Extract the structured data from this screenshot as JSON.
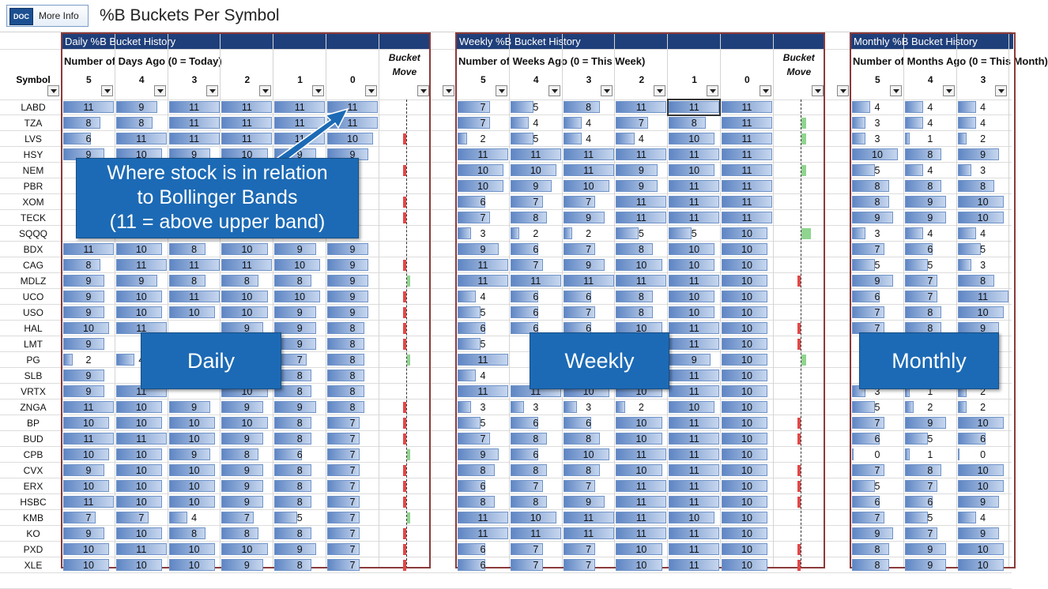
{
  "toolbar": {
    "doc_icon": "DOC",
    "more_info_label": "More Info",
    "title": "%B Buckets Per Symbol"
  },
  "symbol_header": "Symbol",
  "sections": [
    {
      "id": "daily",
      "title": "Daily %B Bucket History",
      "subheader": "Number of Days Ago (0 = Today)"
    },
    {
      "id": "weekly",
      "title": "Weekly %B Bucket History",
      "subheader": "Number of Weeks Ago (0 = This Week)"
    },
    {
      "id": "monthly",
      "title": "Monthly %B Bucket History",
      "subheader": "Number of Months Ago (0 = This Month)"
    }
  ],
  "column_numbers": [
    "5",
    "4",
    "3",
    "2",
    "1",
    "0"
  ],
  "bucket_move_label": "Bucket Move",
  "symbols": [
    "LABD",
    "TZA",
    "LVS",
    "HSY",
    "NEM",
    "PBR",
    "XOM",
    "TECK",
    "SQQQ",
    "BDX",
    "CAG",
    "MDLZ",
    "UCO",
    "USO",
    "HAL",
    "LMT",
    "PG",
    "SLB",
    "VRTX",
    "ZNGA",
    "BP",
    "BUD",
    "CPB",
    "CVX",
    "ERX",
    "HSBC",
    "KMB",
    "KO",
    "PXD",
    "XLE"
  ],
  "daily": [
    [
      11,
      9,
      11,
      11,
      11,
      11
    ],
    [
      8,
      8,
      11,
      11,
      11,
      11
    ],
    [
      6,
      11,
      11,
      11,
      11,
      10
    ],
    [
      9,
      10,
      9,
      10,
      9,
      9
    ],
    [
      null,
      null,
      null,
      null,
      null,
      null
    ],
    [
      null,
      null,
      null,
      null,
      null,
      null
    ],
    [
      null,
      null,
      null,
      null,
      null,
      null
    ],
    [
      null,
      null,
      null,
      null,
      null,
      null
    ],
    [
      null,
      null,
      null,
      null,
      null,
      null
    ],
    [
      11,
      10,
      8,
      10,
      9,
      9
    ],
    [
      8,
      11,
      11,
      11,
      10,
      9
    ],
    [
      9,
      9,
      8,
      8,
      8,
      9
    ],
    [
      9,
      10,
      11,
      10,
      10,
      9
    ],
    [
      9,
      10,
      10,
      10,
      9,
      9
    ],
    [
      10,
      11,
      null,
      9,
      9,
      8
    ],
    [
      9,
      null,
      null,
      null,
      9,
      8
    ],
    [
      2,
      4,
      null,
      null,
      7,
      8
    ],
    [
      9,
      null,
      null,
      null,
      8,
      8
    ],
    [
      9,
      11,
      null,
      10,
      8,
      8
    ],
    [
      11,
      10,
      9,
      9,
      9,
      8
    ],
    [
      10,
      10,
      10,
      10,
      8,
      7
    ],
    [
      11,
      11,
      10,
      9,
      8,
      7
    ],
    [
      10,
      10,
      9,
      8,
      6,
      7
    ],
    [
      9,
      10,
      10,
      9,
      8,
      7
    ],
    [
      10,
      10,
      10,
      9,
      8,
      7
    ],
    [
      11,
      10,
      10,
      9,
      8,
      7
    ],
    [
      7,
      7,
      4,
      7,
      5,
      7
    ],
    [
      9,
      10,
      8,
      8,
      8,
      7
    ],
    [
      10,
      11,
      10,
      10,
      9,
      7
    ],
    [
      10,
      10,
      10,
      9,
      8,
      7
    ]
  ],
  "weekly": [
    [
      7,
      5,
      8,
      11,
      11,
      11
    ],
    [
      7,
      4,
      4,
      7,
      8,
      11
    ],
    [
      2,
      5,
      4,
      4,
      10,
      11
    ],
    [
      11,
      11,
      11,
      11,
      11,
      11
    ],
    [
      10,
      10,
      11,
      9,
      10,
      11
    ],
    [
      10,
      9,
      10,
      9,
      11,
      11
    ],
    [
      6,
      7,
      7,
      11,
      11,
      11
    ],
    [
      7,
      8,
      9,
      11,
      11,
      11
    ],
    [
      3,
      2,
      2,
      5,
      5,
      10
    ],
    [
      9,
      6,
      7,
      8,
      10,
      10
    ],
    [
      11,
      7,
      9,
      10,
      10,
      10
    ],
    [
      11,
      11,
      11,
      11,
      11,
      10
    ],
    [
      4,
      6,
      6,
      8,
      10,
      10
    ],
    [
      5,
      6,
      7,
      8,
      10,
      10
    ],
    [
      6,
      6,
      6,
      10,
      11,
      10
    ],
    [
      5,
      null,
      null,
      null,
      11,
      10
    ],
    [
      11,
      null,
      null,
      null,
      9,
      10
    ],
    [
      4,
      null,
      null,
      null,
      11,
      10
    ],
    [
      11,
      11,
      10,
      10,
      11,
      10
    ],
    [
      3,
      3,
      3,
      2,
      10,
      10
    ],
    [
      5,
      6,
      6,
      10,
      11,
      10
    ],
    [
      7,
      8,
      8,
      10,
      11,
      10
    ],
    [
      9,
      6,
      10,
      11,
      11,
      10
    ],
    [
      8,
      8,
      8,
      10,
      11,
      10
    ],
    [
      6,
      7,
      7,
      11,
      11,
      10
    ],
    [
      8,
      8,
      9,
      11,
      11,
      10
    ],
    [
      11,
      10,
      11,
      11,
      10,
      10
    ],
    [
      11,
      11,
      11,
      11,
      11,
      10
    ],
    [
      6,
      7,
      7,
      10,
      11,
      10
    ],
    [
      6,
      7,
      7,
      10,
      11,
      10
    ]
  ],
  "monthly": [
    [
      4,
      4,
      4
    ],
    [
      3,
      4,
      4
    ],
    [
      3,
      1,
      2
    ],
    [
      10,
      8,
      9
    ],
    [
      5,
      4,
      3
    ],
    [
      8,
      8,
      8
    ],
    [
      8,
      9,
      10
    ],
    [
      9,
      9,
      10
    ],
    [
      3,
      4,
      4
    ],
    [
      7,
      6,
      5
    ],
    [
      5,
      5,
      3
    ],
    [
      9,
      7,
      8
    ],
    [
      6,
      7,
      11
    ],
    [
      7,
      8,
      10
    ],
    [
      7,
      8,
      9
    ],
    [
      null,
      null,
      null
    ],
    [
      null,
      null,
      null
    ],
    [
      null,
      null,
      null
    ],
    [
      3,
      1,
      2
    ],
    [
      5,
      2,
      2
    ],
    [
      7,
      9,
      10
    ],
    [
      6,
      5,
      6
    ],
    [
      0,
      1,
      0
    ],
    [
      7,
      8,
      10
    ],
    [
      5,
      7,
      10
    ],
    [
      6,
      6,
      9
    ],
    [
      7,
      5,
      4
    ],
    [
      9,
      7,
      9
    ],
    [
      8,
      9,
      10
    ],
    [
      8,
      9,
      10
    ]
  ],
  "daily_moves": [
    "",
    "",
    "r",
    "",
    "r",
    "",
    "r",
    "r",
    "",
    "",
    "r",
    "g",
    "r",
    "r",
    "r",
    "r",
    "g",
    "",
    "",
    "r",
    "r",
    "r",
    "g",
    "r",
    "r",
    "r",
    "g",
    "r",
    "r",
    "r"
  ],
  "weekly_moves": [
    "",
    "g",
    "g",
    "",
    "g",
    "",
    "",
    "",
    "g",
    "",
    "",
    "r",
    "",
    "",
    "r",
    "r",
    "g",
    "",
    "",
    "",
    "r",
    "r",
    "",
    "r",
    "r",
    "r",
    "",
    "",
    "r",
    "r"
  ],
  "callouts": {
    "bollinger": [
      "Where stock is in relation",
      "to Bollinger Bands",
      "(11 = above upper band)"
    ],
    "daily": "Daily",
    "weekly": "Weekly",
    "monthly": "Monthly"
  },
  "colors": {
    "header_bg": "#1f3f7a",
    "section_border": "#8b3a3a",
    "callout_bg": "#1c6ab5",
    "bar_dark": "#5f86c4",
    "bar_light": "#c6d6ee",
    "move_red": "#e04848",
    "move_green": "#8fd48f"
  }
}
